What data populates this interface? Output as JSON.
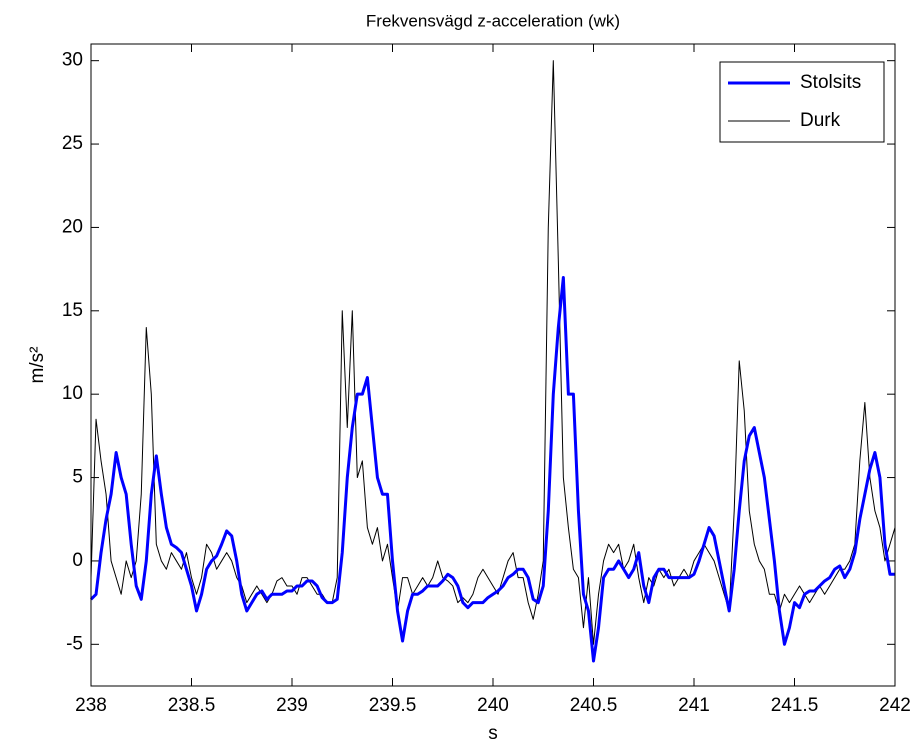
{
  "chart_data": {
    "type": "line",
    "title": "Frekvensvägd z-acceleration (wk)",
    "xlabel": "s",
    "ylabel": "m/s²",
    "x": [
      238,
      238.025,
      238.05,
      238.075,
      238.1,
      238.125,
      238.15,
      238.175,
      238.2,
      238.225,
      238.25,
      238.275,
      238.3,
      238.325,
      238.35,
      238.375,
      238.4,
      238.425,
      238.45,
      238.475,
      238.5,
      238.525,
      238.55,
      238.575,
      238.6,
      238.625,
      238.65,
      238.675,
      238.7,
      238.725,
      238.75,
      238.775,
      238.8,
      238.825,
      238.85,
      238.875,
      238.9,
      238.925,
      238.95,
      238.975,
      239,
      239.025,
      239.05,
      239.075,
      239.1,
      239.125,
      239.15,
      239.175,
      239.2,
      239.225,
      239.25,
      239.275,
      239.3,
      239.325,
      239.35,
      239.375,
      239.4,
      239.425,
      239.45,
      239.475,
      239.5,
      239.525,
      239.55,
      239.575,
      239.6,
      239.625,
      239.65,
      239.675,
      239.7,
      239.725,
      239.75,
      239.775,
      239.8,
      239.825,
      239.85,
      239.875,
      239.9,
      239.925,
      239.95,
      239.975,
      240,
      240.025,
      240.05,
      240.075,
      240.1,
      240.125,
      240.15,
      240.175,
      240.2,
      240.225,
      240.25,
      240.275,
      240.3,
      240.325,
      240.35,
      240.375,
      240.4,
      240.425,
      240.45,
      240.475,
      240.5,
      240.525,
      240.55,
      240.575,
      240.6,
      240.625,
      240.65,
      240.675,
      240.7,
      240.725,
      240.75,
      240.775,
      240.8,
      240.825,
      240.85,
      240.875,
      240.9,
      240.925,
      240.95,
      240.975,
      241,
      241.025,
      241.05,
      241.075,
      241.1,
      241.125,
      241.15,
      241.175,
      241.2,
      241.225,
      241.25,
      241.275,
      241.3,
      241.325,
      241.35,
      241.375,
      241.4,
      241.425,
      241.45,
      241.475,
      241.5,
      241.525,
      241.55,
      241.575,
      241.6,
      241.625,
      241.65,
      241.675,
      241.7,
      241.725,
      241.75,
      241.775,
      241.8,
      241.825,
      241.85,
      241.875,
      241.9,
      241.925,
      241.95,
      241.975,
      242
    ],
    "series": [
      {
        "name": "Stolsits",
        "color": "#0000ff",
        "width": 3,
        "values": [
          -2.3,
          -2,
          0.5,
          2.5,
          4,
          6.5,
          5,
          4,
          1,
          -1.5,
          -2.3,
          0,
          4,
          6.3,
          4,
          2,
          1,
          0.8,
          0.5,
          -0.5,
          -1.5,
          -3,
          -2,
          -0.5,
          0,
          0.3,
          1,
          1.8,
          1.5,
          0,
          -2,
          -3,
          -2.5,
          -2,
          -1.8,
          -2.3,
          -2,
          -2,
          -2,
          -1.8,
          -1.8,
          -1.5,
          -1.5,
          -1.2,
          -1.2,
          -1.5,
          -2.2,
          -2.5,
          -2.5,
          -2.3,
          0.5,
          5,
          8,
          10,
          10,
          11,
          8,
          5,
          4,
          4,
          0,
          -3,
          -4.8,
          -3,
          -2,
          -2,
          -1.8,
          -1.5,
          -1.5,
          -1.5,
          -1.2,
          -0.8,
          -1,
          -1.5,
          -2.5,
          -2.8,
          -2.5,
          -2.5,
          -2.5,
          -2.2,
          -2,
          -1.8,
          -1.5,
          -1,
          -0.8,
          -0.5,
          -0.5,
          -1,
          -2.3,
          -2.5,
          -1.5,
          3,
          10,
          14,
          17,
          10,
          10,
          3,
          -2,
          -3,
          -6,
          -4,
          -1,
          -0.5,
          -0.5,
          0,
          -0.5,
          -1,
          -0.5,
          0.5,
          -1.5,
          -2.5,
          -1,
          -0.5,
          -0.5,
          -1,
          -1,
          -1,
          -1,
          -1,
          -0.8,
          0,
          1,
          2,
          1.5,
          0,
          -1.5,
          -3,
          -0.5,
          3,
          6,
          7.5,
          8,
          6.5,
          5,
          2.5,
          0,
          -3,
          -5,
          -4,
          -2.5,
          -2.8,
          -2,
          -1.8,
          -1.8,
          -1.5,
          -1.2,
          -1,
          -0.5,
          -0.3,
          -1,
          -0.5,
          0.5,
          2.5,
          4,
          5.5,
          6.5,
          5,
          1,
          -0.8,
          -0.8
        ]
      },
      {
        "name": "Durk",
        "color": "#000000",
        "width": 1,
        "values": [
          -1,
          8.5,
          6,
          4,
          0,
          -1,
          -2,
          0,
          -1,
          0,
          4,
          14,
          10,
          1,
          0,
          -0.5,
          0.5,
          0,
          -0.5,
          0.5,
          -1,
          -2,
          -1,
          1,
          0.5,
          -0.5,
          0,
          0.5,
          0,
          -1,
          -1.5,
          -2.5,
          -2,
          -1.5,
          -2,
          -2.5,
          -2,
          -1.2,
          -1,
          -1.5,
          -1.5,
          -2,
          -1,
          -1,
          -1.5,
          -2,
          -2,
          -2.5,
          -2.5,
          -1,
          15,
          8,
          15,
          5,
          6,
          2,
          1,
          2,
          0,
          1,
          -1,
          -3,
          -1,
          -1,
          -2,
          -1.5,
          -1,
          -1.5,
          -1,
          0,
          -1,
          -1.2,
          -1.5,
          -2.5,
          -2.2,
          -2.5,
          -2,
          -1,
          -0.5,
          -1,
          -1.5,
          -2,
          -1,
          0,
          0.5,
          -1,
          -1,
          -2.5,
          -3.5,
          -2,
          0,
          20,
          30,
          18,
          5,
          2,
          -0.5,
          -1,
          -4,
          -1,
          -5,
          -2,
          0,
          1,
          0.5,
          1,
          -0.5,
          0,
          1,
          -1,
          -2.5,
          -1,
          -1.5,
          -0.5,
          -1,
          -0.5,
          -1.5,
          -1,
          -0.5,
          -1,
          0,
          0.5,
          1,
          0.5,
          0,
          -1,
          -2,
          -3,
          3,
          12,
          9,
          3,
          1,
          0,
          -0.5,
          -2,
          -2,
          -3,
          -2,
          -2.5,
          -2,
          -1.5,
          -2,
          -2.5,
          -2,
          -1.5,
          -2,
          -1.5,
          -1,
          -0.5,
          -0.5,
          0,
          1,
          6,
          9.5,
          5,
          3,
          2,
          0,
          1,
          2
        ]
      }
    ],
    "xlim": [
      238,
      242
    ],
    "ylim": [
      -7.5,
      31
    ],
    "xticks": [
      238,
      238.5,
      239,
      239.5,
      240,
      240.5,
      241,
      241.5,
      242
    ],
    "yticks": [
      -5,
      0,
      5,
      10,
      15,
      20,
      25,
      30
    ],
    "grid": false,
    "legend": "upper right"
  }
}
